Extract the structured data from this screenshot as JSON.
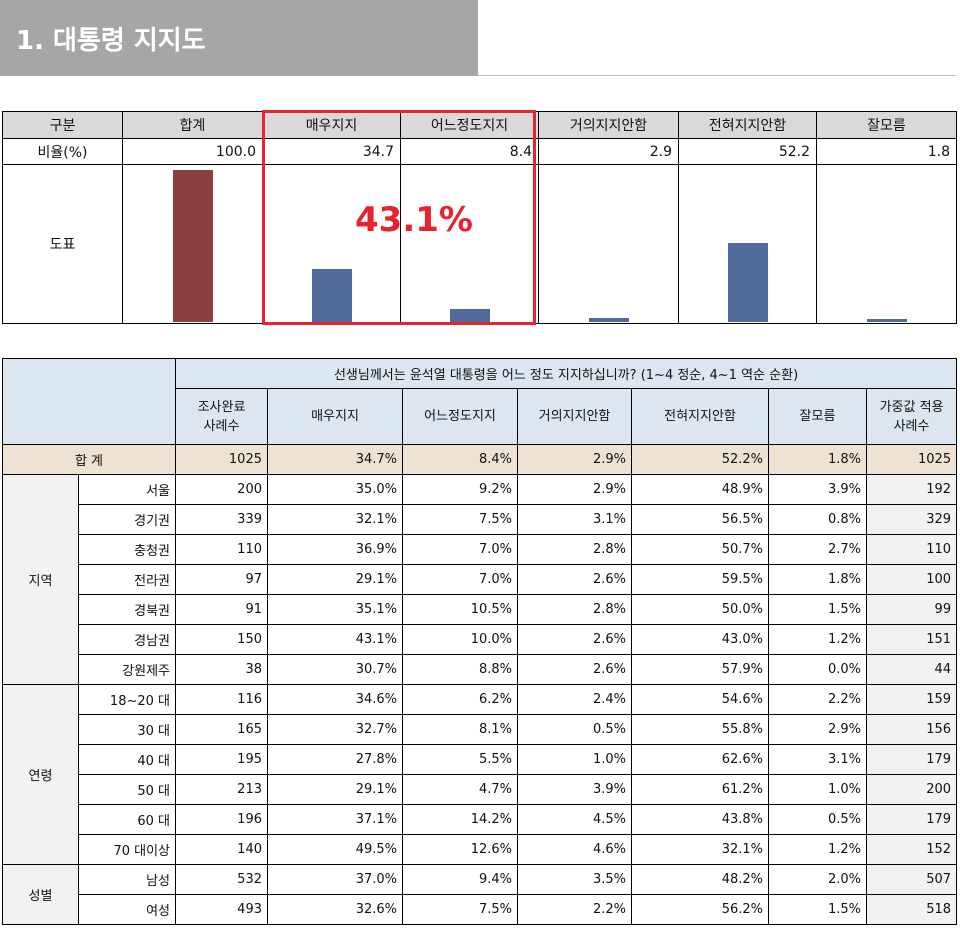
{
  "title": "1. 대통령 지지도",
  "summary": {
    "headers": [
      "구분",
      "합계",
      "매우지지",
      "어느정도지지",
      "거의지지안함",
      "전혀지지안함",
      "잘모름"
    ],
    "rate_label": "비율(%)",
    "rates": [
      "100.0",
      "34.7",
      "8.4",
      "2.9",
      "52.2",
      "1.8"
    ],
    "chart_label": "도표",
    "highlight_text": "43.1%"
  },
  "chart_data": {
    "type": "bar",
    "categories": [
      "합계",
      "매우지지",
      "어느정도지지",
      "거의지지안함",
      "전혀지지안함",
      "잘모름"
    ],
    "values": [
      100.0,
      34.7,
      8.4,
      2.9,
      52.2,
      1.8
    ],
    "ylim": [
      0,
      100
    ],
    "colors": [
      "#8c3f3f",
      "#4f6a9b",
      "#4f6a9b",
      "#4f6a9b",
      "#4f6a9b",
      "#4f6a9b"
    ]
  },
  "detail": {
    "question": "선생님께서는 윤석열 대통령을 어느 정도 지지하십니까? (1~4 정순, 4~1 역순 순환)",
    "col_sample": [
      "조사완료",
      "사례수"
    ],
    "cols": [
      "매우지지",
      "어느정도지지",
      "거의지지안함",
      "전혀지지안함",
      "잘모름"
    ],
    "col_weighted": [
      "가중값 적용",
      "사례수"
    ],
    "total_label": "합 계",
    "total": [
      "1025",
      "34.7%",
      "8.4%",
      "2.9%",
      "52.2%",
      "1.8%",
      "1025"
    ],
    "groups": [
      {
        "name": "지역",
        "rows": [
          {
            "label": "서울",
            "values": [
              "200",
              "35.0%",
              "9.2%",
              "2.9%",
              "48.9%",
              "3.9%",
              "192"
            ]
          },
          {
            "label": "경기권",
            "values": [
              "339",
              "32.1%",
              "7.5%",
              "3.1%",
              "56.5%",
              "0.8%",
              "329"
            ]
          },
          {
            "label": "충청권",
            "values": [
              "110",
              "36.9%",
              "7.0%",
              "2.8%",
              "50.7%",
              "2.7%",
              "110"
            ]
          },
          {
            "label": "전라권",
            "values": [
              "97",
              "29.1%",
              "7.0%",
              "2.6%",
              "59.5%",
              "1.8%",
              "100"
            ]
          },
          {
            "label": "경북권",
            "values": [
              "91",
              "35.1%",
              "10.5%",
              "2.8%",
              "50.0%",
              "1.5%",
              "99"
            ]
          },
          {
            "label": "경남권",
            "values": [
              "150",
              "43.1%",
              "10.0%",
              "2.6%",
              "43.0%",
              "1.2%",
              "151"
            ]
          },
          {
            "label": "강원제주",
            "values": [
              "38",
              "30.7%",
              "8.8%",
              "2.6%",
              "57.9%",
              "0.0%",
              "44"
            ]
          }
        ]
      },
      {
        "name": "연령",
        "rows": [
          {
            "label": "18~20 대",
            "values": [
              "116",
              "34.6%",
              "6.2%",
              "2.4%",
              "54.6%",
              "2.2%",
              "159"
            ]
          },
          {
            "label": "30 대",
            "values": [
              "165",
              "32.7%",
              "8.1%",
              "0.5%",
              "55.8%",
              "2.9%",
              "156"
            ]
          },
          {
            "label": "40 대",
            "values": [
              "195",
              "27.8%",
              "5.5%",
              "1.0%",
              "62.6%",
              "3.1%",
              "179"
            ]
          },
          {
            "label": "50 대",
            "values": [
              "213",
              "29.1%",
              "4.7%",
              "3.9%",
              "61.2%",
              "1.0%",
              "200"
            ]
          },
          {
            "label": "60 대",
            "values": [
              "196",
              "37.1%",
              "14.2%",
              "4.5%",
              "43.8%",
              "0.5%",
              "179"
            ]
          },
          {
            "label": "70 대이상",
            "values": [
              "140",
              "49.5%",
              "12.6%",
              "4.6%",
              "32.1%",
              "1.2%",
              "152"
            ]
          }
        ]
      },
      {
        "name": "성별",
        "rows": [
          {
            "label": "남성",
            "values": [
              "532",
              "37.0%",
              "9.4%",
              "3.5%",
              "48.2%",
              "2.0%",
              "507"
            ]
          },
          {
            "label": "여성",
            "values": [
              "493",
              "32.6%",
              "7.5%",
              "2.2%",
              "56.2%",
              "1.5%",
              "518"
            ]
          }
        ]
      }
    ]
  }
}
